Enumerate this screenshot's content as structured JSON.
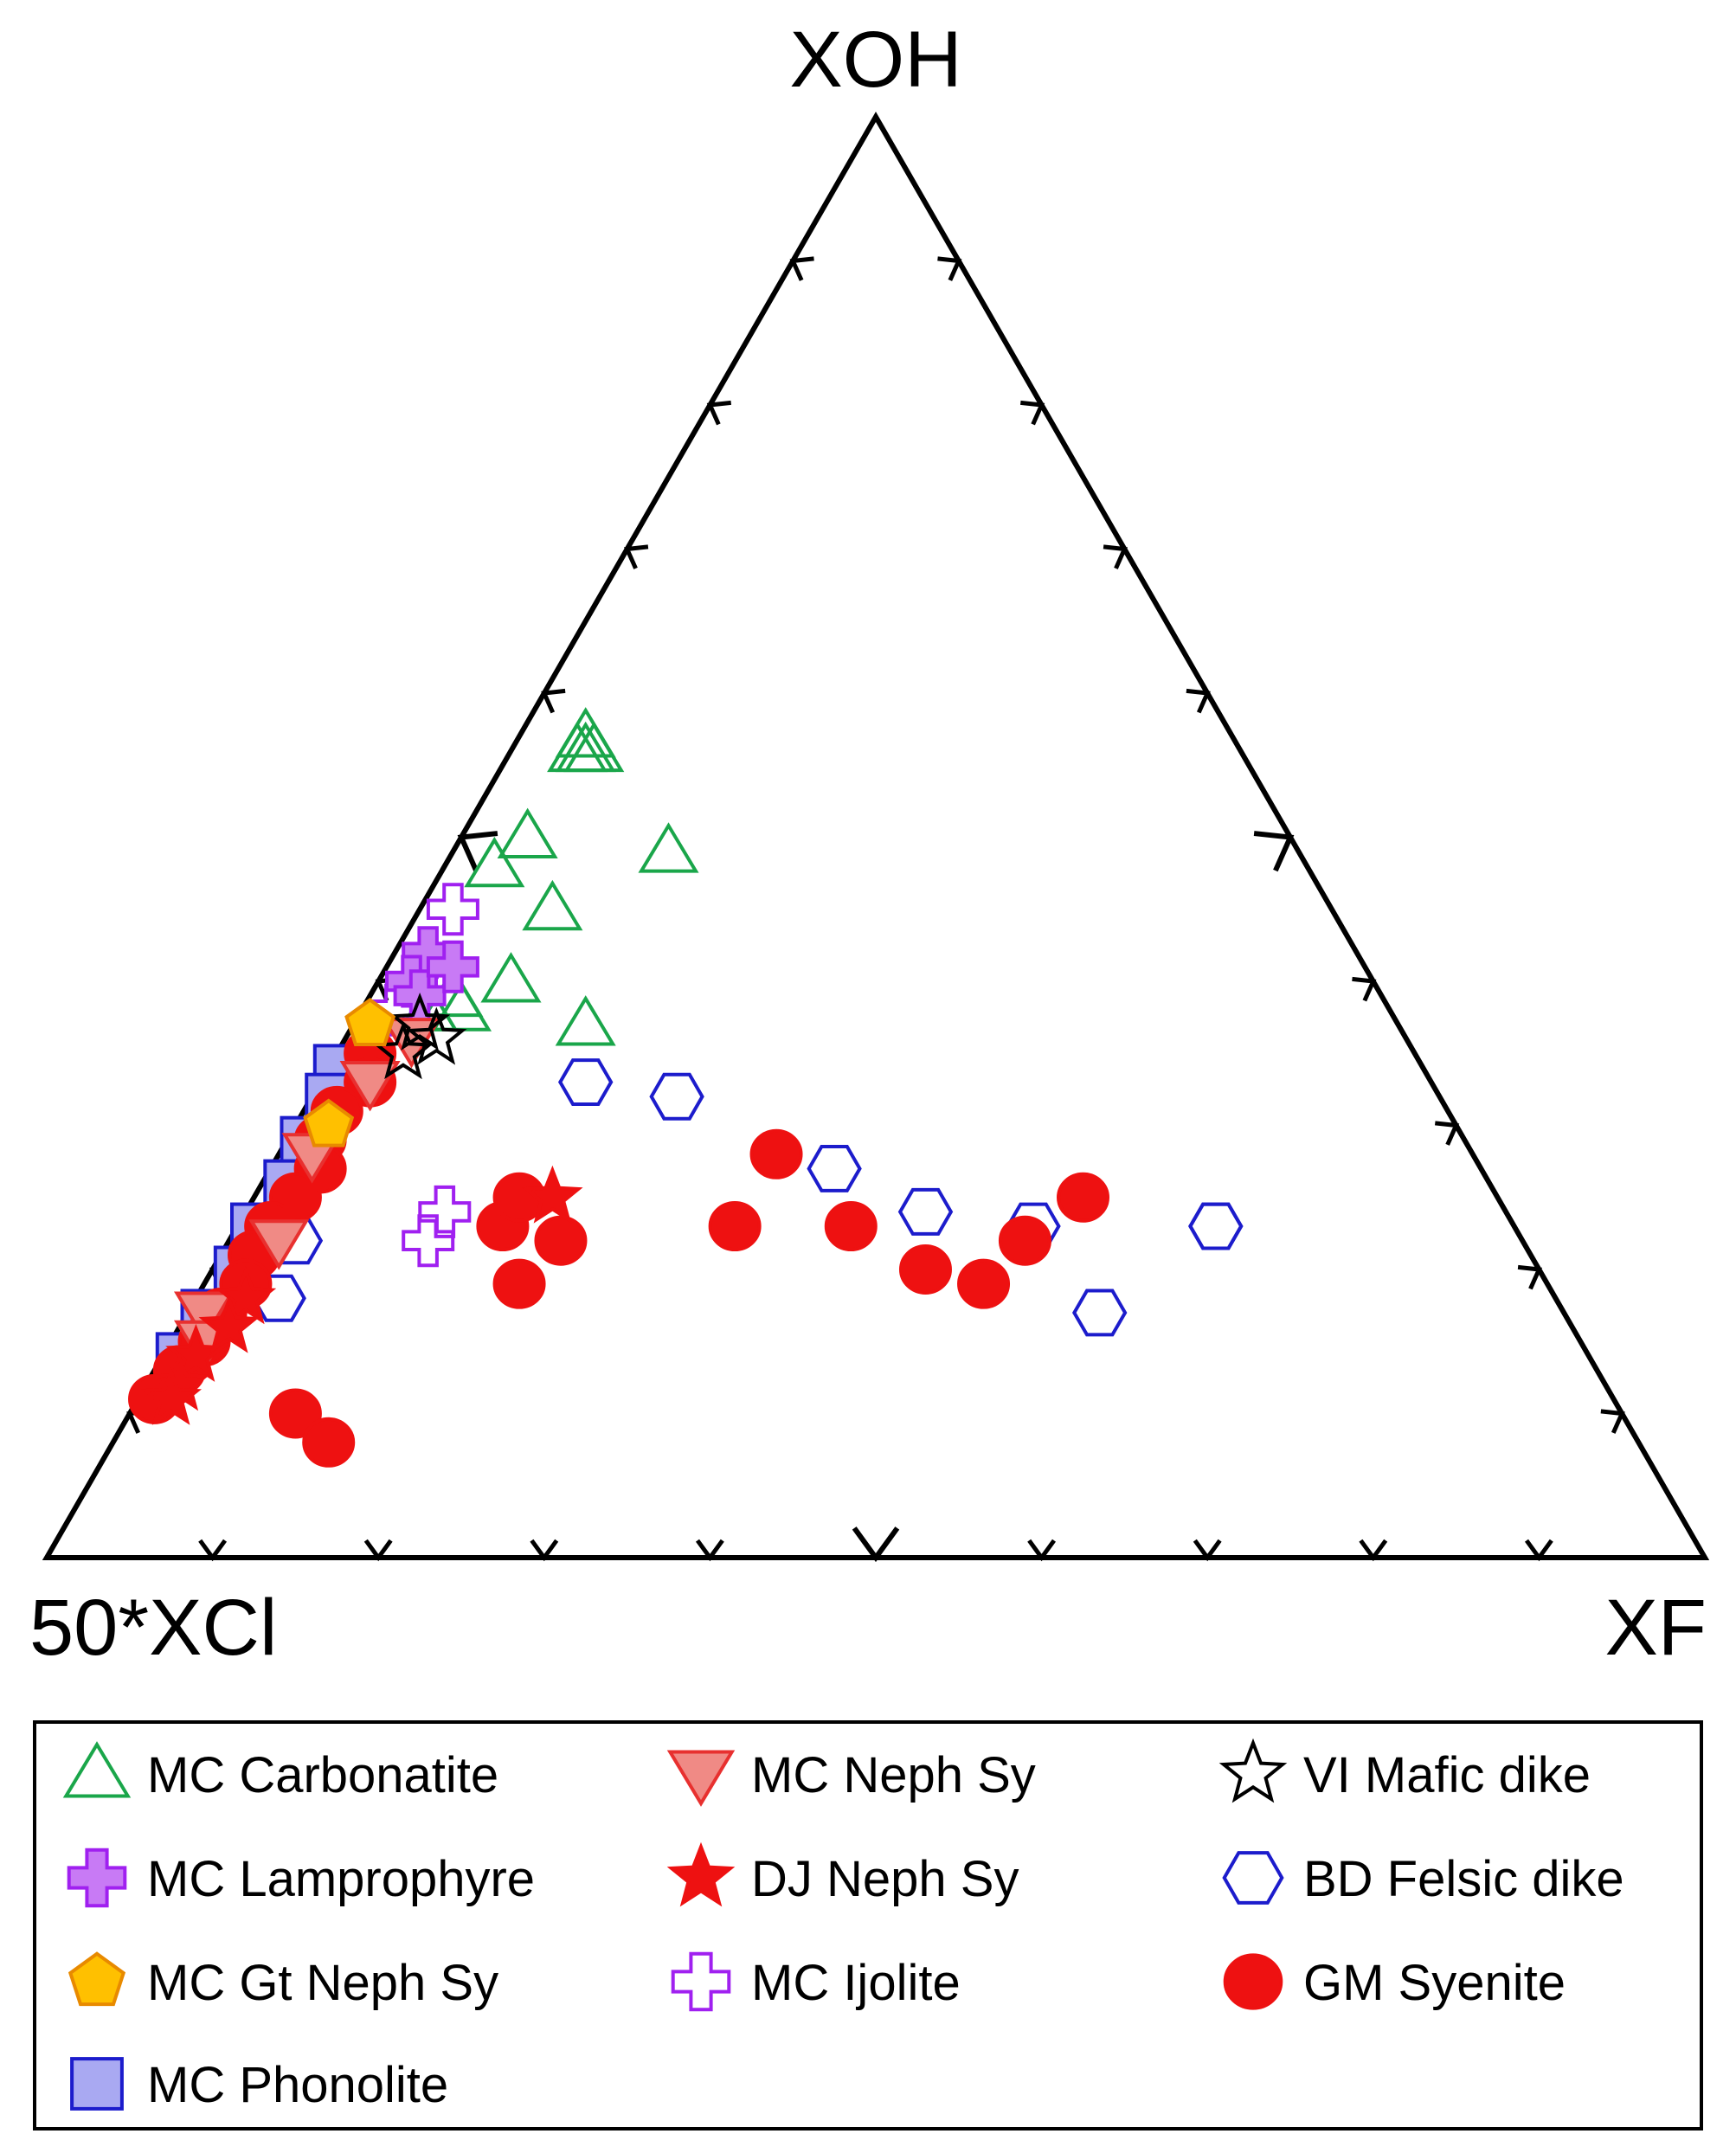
{
  "chart_data": {
    "type": "ternary-scatter",
    "apex_labels": {
      "top": "XOH",
      "left": "50*XCl",
      "right": "XF"
    },
    "legend_placement": "bottom",
    "ticks": {
      "major_every": 0.5,
      "minor_every": 0.1
    },
    "series": [
      {
        "name": "MC Carbonatite",
        "symbol": "triangle-up-open",
        "color": "#1aa64a",
        "fill": "none",
        "points": [
          [
            0.48,
            0.03
          ],
          [
            0.56,
            0.05
          ],
          [
            0.56,
            0.045
          ],
          [
            0.57,
            0.04
          ],
          [
            0.56,
            0.04
          ],
          [
            0.37,
            0.14
          ],
          [
            0.49,
            0.13
          ],
          [
            0.38,
            0.06
          ],
          [
            0.45,
            0.08
          ],
          [
            0.4,
            0.08
          ],
          [
            0.38,
            0.04
          ],
          [
            0.39,
            0.05
          ],
          [
            0.5,
            0.04
          ]
        ]
      },
      {
        "name": "MC Neph Sy",
        "symbol": "triangle-down-filled",
        "color": "#e8302f",
        "fill": "#f08a85",
        "points": [
          [
            0.36,
            0.04
          ],
          [
            0.33,
            0.03
          ],
          [
            0.28,
            0.02
          ],
          [
            0.22,
            0.03
          ],
          [
            0.17,
            0.01
          ],
          [
            0.15,
            0.02
          ]
        ]
      },
      {
        "name": "VI Mafic dike",
        "symbol": "star-open",
        "color": "#000000",
        "fill": "none",
        "points": [
          [
            0.37,
            0.04
          ],
          [
            0.35,
            0.04
          ],
          [
            0.36,
            0.055
          ]
        ]
      },
      {
        "name": "MC Lamprophyre",
        "symbol": "cross-filled",
        "color": "#a020f0",
        "fill": "#c87af5",
        "points": [
          [
            0.42,
            0.02
          ],
          [
            0.4,
            0.02
          ],
          [
            0.39,
            0.03
          ],
          [
            0.41,
            0.04
          ]
        ]
      },
      {
        "name": "DJ Neph Sy",
        "symbol": "star-filled",
        "color": "#ee1111",
        "fill": "#ee1111",
        "points": [
          [
            0.25,
            0.18
          ],
          [
            0.18,
            0.03
          ],
          [
            0.14,
            0.02
          ],
          [
            0.12,
            0.02
          ],
          [
            0.11,
            0.02
          ],
          [
            0.16,
            0.03
          ]
        ]
      },
      {
        "name": "BD Felsic dike",
        "symbol": "hexagon-open",
        "color": "#1c1ccc",
        "fill": "none",
        "points": [
          [
            0.23,
            0.59
          ],
          [
            0.23,
            0.59
          ],
          [
            0.17,
            0.55
          ],
          [
            0.23,
            0.48
          ],
          [
            0.24,
            0.41
          ],
          [
            0.27,
            0.34
          ],
          [
            0.32,
            0.22
          ],
          [
            0.33,
            0.16
          ],
          [
            0.18,
            0.05
          ],
          [
            0.22,
            0.04
          ]
        ]
      },
      {
        "name": "MC Gt Neph Sy",
        "symbol": "pentagon-filled",
        "color": "#e88a00",
        "fill": "#ffc000",
        "points": [
          [
            0.37,
            0.01
          ],
          [
            0.3,
            0.02
          ]
        ]
      },
      {
        "name": "MC Ijolite",
        "symbol": "cross-open",
        "color": "#a020f0",
        "fill": "none",
        "points": [
          [
            0.45,
            0.02
          ],
          [
            0.38,
            0.02
          ],
          [
            0.22,
            0.12
          ],
          [
            0.24,
            0.12
          ]
        ]
      },
      {
        "name": "GM Syenite",
        "symbol": "circle-filled",
        "color": "#ee1111",
        "fill": "#ee1111",
        "points": [
          [
            0.25,
            0.5
          ],
          [
            0.22,
            0.48
          ],
          [
            0.19,
            0.47
          ],
          [
            0.2,
            0.43
          ],
          [
            0.23,
            0.37
          ],
          [
            0.28,
            0.3
          ],
          [
            0.23,
            0.3
          ],
          [
            0.22,
            0.2
          ],
          [
            0.19,
            0.19
          ],
          [
            0.23,
            0.16
          ],
          [
            0.25,
            0.16
          ],
          [
            0.1,
            0.1
          ],
          [
            0.08,
            0.13
          ],
          [
            0.35,
            0.02
          ],
          [
            0.33,
            0.03
          ],
          [
            0.31,
            0.02
          ],
          [
            0.29,
            0.02
          ],
          [
            0.27,
            0.03
          ],
          [
            0.25,
            0.025
          ],
          [
            0.23,
            0.02
          ],
          [
            0.21,
            0.02
          ],
          [
            0.19,
            0.025
          ],
          [
            0.17,
            0.02
          ],
          [
            0.15,
            0.02
          ],
          [
            0.13,
            0.015
          ],
          [
            0.11,
            0.01
          ]
        ]
      },
      {
        "name": "MC Phonolite",
        "symbol": "square-filled",
        "color": "#1c1ccc",
        "fill": "#a9a9f2",
        "points": [
          [
            0.34,
            0.005
          ],
          [
            0.32,
            0.01
          ],
          [
            0.29,
            0.01
          ],
          [
            0.26,
            0.015
          ],
          [
            0.23,
            0.01
          ],
          [
            0.2,
            0.015
          ],
          [
            0.17,
            0.01
          ],
          [
            0.14,
            0.01
          ]
        ]
      }
    ]
  },
  "legend": {
    "items": [
      {
        "label": "MC Carbonatite",
        "symbol": "triangle-up-open",
        "color": "#1aa64a",
        "fill": "none"
      },
      {
        "label": "MC Neph Sy",
        "symbol": "triangle-down-filled",
        "color": "#e8302f",
        "fill": "#f08a85"
      },
      {
        "label": "VI Mafic dike",
        "symbol": "star-open",
        "color": "#000000",
        "fill": "none"
      },
      {
        "label": "MC Lamprophyre",
        "symbol": "cross-filled",
        "color": "#a020f0",
        "fill": "#c87af5"
      },
      {
        "label": "DJ Neph Sy",
        "symbol": "star-filled",
        "color": "#ee1111",
        "fill": "#ee1111"
      },
      {
        "label": "BD Felsic dike",
        "symbol": "hexagon-open",
        "color": "#1c1ccc",
        "fill": "none"
      },
      {
        "label": "MC Gt Neph Sy",
        "symbol": "pentagon-filled",
        "color": "#e88a00",
        "fill": "#ffc000"
      },
      {
        "label": "MC Ijolite",
        "symbol": "cross-open",
        "color": "#a020f0",
        "fill": "none"
      },
      {
        "label": "GM Syenite",
        "symbol": "circle-filled",
        "color": "#ee1111",
        "fill": "#ee1111"
      },
      {
        "label": "MC Phonolite",
        "symbol": "square-filled",
        "color": "#1c1ccc",
        "fill": "#a9a9f2"
      }
    ]
  }
}
